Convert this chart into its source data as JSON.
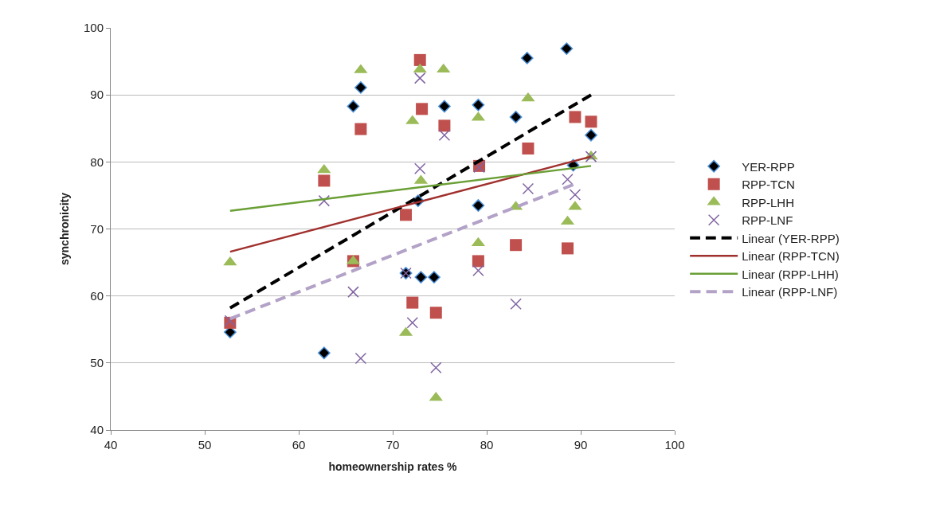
{
  "chart_data": {
    "type": "scatter",
    "xlabel": "homeownership rates %",
    "ylabel": "synchronicity",
    "xlim": [
      40,
      100
    ],
    "xticks": [
      40,
      50,
      60,
      70,
      80,
      90,
      100
    ],
    "ylim": [
      40,
      100
    ],
    "yticks": [
      40,
      50,
      60,
      70,
      80,
      90,
      100
    ],
    "grid": "y",
    "legend": "right",
    "series": [
      {
        "name": "YER-RPP",
        "marker": "diamond",
        "color": "#000000",
        "x": [
          52.7,
          62.7,
          65.8,
          66.6,
          71.4,
          72.7,
          73.0,
          74.4,
          75.5,
          79.1,
          79.1,
          83.1,
          84.3,
          88.5,
          89.2,
          91.1
        ],
        "values": [
          54.6,
          51.5,
          88.3,
          91.1,
          63.4,
          74.2,
          62.8,
          62.8,
          88.3,
          88.5,
          73.5,
          86.7,
          95.5,
          96.9,
          79.5,
          84.0
        ]
      },
      {
        "name": "RPP-TCN",
        "marker": "square",
        "color": "#c0504d",
        "x": [
          52.7,
          62.7,
          65.8,
          66.6,
          71.4,
          72.1,
          72.9,
          73.1,
          74.6,
          75.5,
          79.1,
          79.2,
          83.1,
          84.4,
          88.6,
          89.4,
          91.1
        ],
        "values": [
          56.0,
          77.2,
          65.2,
          84.9,
          72.1,
          59.0,
          95.2,
          87.9,
          57.5,
          85.4,
          65.2,
          79.4,
          67.6,
          82.0,
          67.1,
          86.7,
          86.0
        ]
      },
      {
        "name": "RPP-LHH",
        "marker": "triangle",
        "color": "#9bbb59",
        "x": [
          52.7,
          62.7,
          65.8,
          66.6,
          71.4,
          72.1,
          72.9,
          73.0,
          74.6,
          75.4,
          79.1,
          79.1,
          83.1,
          84.4,
          88.6,
          89.4,
          91.1
        ],
        "values": [
          65.0,
          78.8,
          65.2,
          93.7,
          54.5,
          86.1,
          93.8,
          77.2,
          44.8,
          93.8,
          86.6,
          67.9,
          73.3,
          89.5,
          71.1,
          73.3,
          80.8
        ]
      },
      {
        "name": "RPP-LNF",
        "marker": "cross",
        "color": "#8064a2",
        "x": [
          52.7,
          62.7,
          65.8,
          66.6,
          71.4,
          72.1,
          72.9,
          72.9,
          74.6,
          75.5,
          79.1,
          79.2,
          83.1,
          84.4,
          88.6,
          89.4,
          91.1
        ],
        "values": [
          56.3,
          74.2,
          60.6,
          50.7,
          63.4,
          56.0,
          92.5,
          79.0,
          49.3,
          84.0,
          63.8,
          79.2,
          58.8,
          76.0,
          77.4,
          75.1,
          80.8
        ]
      },
      {
        "name": "Linear (YER-RPP)",
        "type": "line",
        "line_style": "dashed",
        "color": "#000000",
        "x": [
          52.7,
          91.1
        ],
        "values": [
          58.2,
          90.0
        ]
      },
      {
        "name": "Linear (RPP-TCN)",
        "type": "line",
        "line_style": "solid",
        "color": "#a0302d",
        "x": [
          52.7,
          91.1
        ],
        "values": [
          66.6,
          80.8
        ]
      },
      {
        "name": "Linear (RPP-LHH)",
        "type": "line",
        "line_style": "solid",
        "color": "#6a9f35",
        "x": [
          52.7,
          91.1
        ],
        "values": [
          72.7,
          79.4
        ]
      },
      {
        "name": "Linear (RPP-LNF)",
        "type": "line",
        "line_style": "dashed",
        "color": "#b3a2c7",
        "x": [
          52.7,
          89.2
        ],
        "values": [
          56.6,
          76.6
        ]
      }
    ]
  }
}
